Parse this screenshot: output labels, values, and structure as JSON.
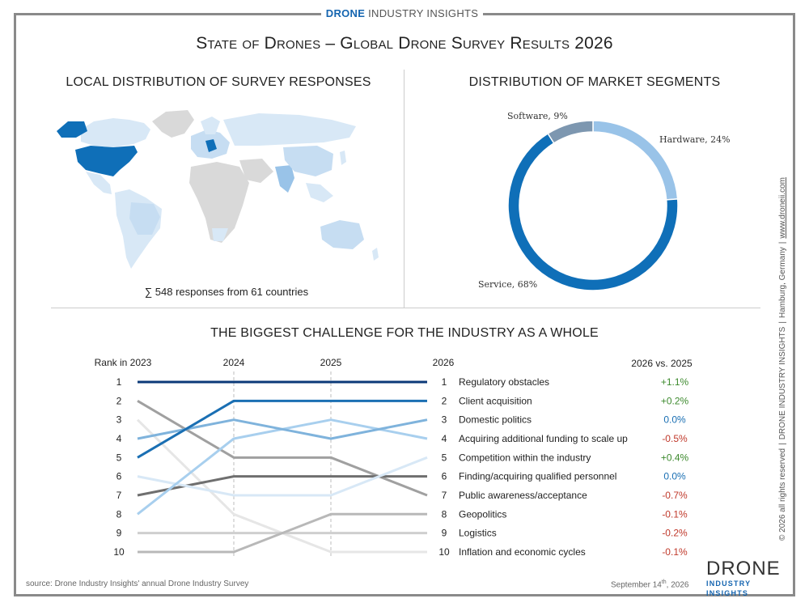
{
  "brand": {
    "name_bold": "DRONE",
    "name_rest": " INDUSTRY INSIGHTS"
  },
  "title": "State of Drones – Global Drone Survey Results 2026",
  "map_section": {
    "title": "LOCAL DISTRIBUTION OF SURVEY RESPONSES",
    "note": "∑ 548 responses from 61 countries"
  },
  "colors": {
    "dark_blue": "#0b3a78",
    "blue": "#1a6fb3",
    "mid_blue": "#7fb3dc",
    "light_blue": "#b3d4ee",
    "pale_blue": "#d8e8f6",
    "grey_dark": "#6f6f6f",
    "grey": "#a5a5a5",
    "grey_light": "#cccccc",
    "positive": "#3d8a2e",
    "neutral": "#1a6fb3",
    "negative": "#c0392b"
  },
  "chart_data": [
    {
      "type": "pie",
      "title": "DISTRIBUTION OF MARKET SEGMENTS",
      "slices": [
        {
          "name": "Hardware",
          "value": 24,
          "label": "Hardware, 24%",
          "color": "#99c3e8"
        },
        {
          "name": "Service",
          "value": 68,
          "label": "Service, 68%",
          "color": "#0f6fb8"
        },
        {
          "name": "Software",
          "value": 9,
          "label": "Software, 9%",
          "color": "#7d97b0"
        }
      ]
    },
    {
      "type": "line",
      "title": "THE BIGGEST CHALLENGE FOR THE INDUSTRY AS A WHOLE",
      "x": [
        "Rank in 2023",
        "2024",
        "2025",
        "2026"
      ],
      "change_header": "2026 vs. 2025",
      "rank_labels": [
        "1",
        "2",
        "3",
        "4",
        "5",
        "6",
        "7",
        "8",
        "9",
        "10"
      ],
      "series": [
        {
          "name": "Regulatory obstacles",
          "values": [
            1,
            1,
            1,
            1
          ],
          "change": "+1.1%",
          "trend": "positive",
          "color": "#0b3a78"
        },
        {
          "name": "Client acquisition",
          "values": [
            5,
            2,
            2,
            2
          ],
          "change": "+0.2%",
          "trend": "positive",
          "color": "#1a6fb3"
        },
        {
          "name": "Domestic politics",
          "values": [
            4,
            3,
            4,
            3
          ],
          "change": "0.0%",
          "trend": "neutral",
          "color": "#7fb3dc"
        },
        {
          "name": "Acquiring additional funding to scale up",
          "values": [
            8,
            4,
            3,
            4
          ],
          "change": "-0.5%",
          "trend": "negative",
          "color": "#a8cfee"
        },
        {
          "name": "Competition within the industry",
          "values": [
            6,
            7,
            7,
            5
          ],
          "change": "+0.4%",
          "trend": "positive",
          "color": "#d8e8f6"
        },
        {
          "name": "Finding/acquiring qualified personnel",
          "values": [
            7,
            6,
            6,
            6
          ],
          "change": "0.0%",
          "trend": "neutral",
          "color": "#6f6f6f"
        },
        {
          "name": "Public awareness/acceptance",
          "values": [
            2,
            5,
            5,
            7
          ],
          "change": "-0.7%",
          "trend": "negative",
          "color": "#a0a0a0"
        },
        {
          "name": "Geopolitics",
          "values": [
            10,
            10,
            8,
            8
          ],
          "change": "-0.1%",
          "trend": "negative",
          "color": "#b8b8b8"
        },
        {
          "name": "Logistics",
          "values": [
            9,
            9,
            9,
            9
          ],
          "change": "-0.2%",
          "trend": "negative",
          "color": "#cfcfcf"
        },
        {
          "name": "Inflation and economic cycles",
          "values": [
            3,
            8,
            10,
            10
          ],
          "change": "-0.1%",
          "trend": "negative",
          "color": "#e6e6e6"
        }
      ]
    }
  ],
  "side_text": {
    "copyright": "© 2026 all rights reserved",
    "company": "DRONE INDUSTRY INSIGHTS",
    "location": "Hamburg, Germany",
    "website": "www.droneii.com"
  },
  "footer": {
    "source": "source: Drone Industry Insights' annual Drone Industry Survey",
    "date_prefix": "September 14",
    "date_suffix": "th",
    "date_year": ", 2026"
  },
  "logo": {
    "line1": "DRONE",
    "line2": "INDUSTRY INSIGHTS"
  }
}
